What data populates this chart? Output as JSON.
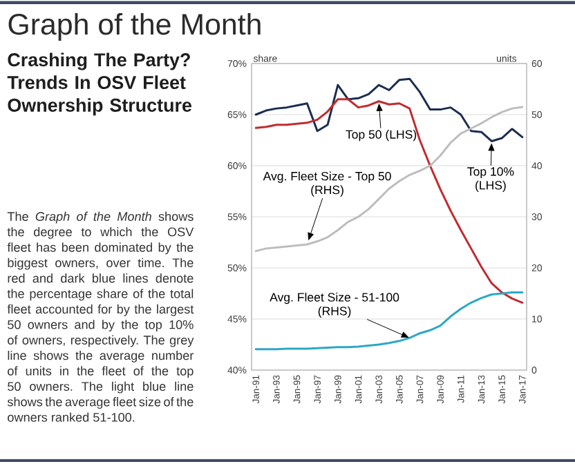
{
  "chart_data": {
    "type": "line",
    "title": "Graph of the Month",
    "subtitle": "Crashing The Party? Trends In OSV Fleet Ownership Structure",
    "ylabel": "share",
    "y2label": "units",
    "annotations": [
      "The *Graph of the Month* shows the degree to which the OSV fleet has been dominated by the biggest owners, over time. The red and dark blue lines denote the percentage share of the total fleet accounted for by the largest 50 owners and by the top 10% of owners, respectively. The grey line shows the average number of units in the fleet of the top 50 owners. The light blue line shows the average fleet size of the owners ranked 51-100."
    ],
    "x": [
      "1991-01",
      "1992-01",
      "1993-01",
      "1994-01",
      "1995-01",
      "1996-01",
      "1997-01",
      "1998-01",
      "1999-01",
      "2000-01",
      "2001-01",
      "2002-01",
      "2003-01",
      "2004-01",
      "2005-01",
      "2006-01",
      "2007-01",
      "2008-01",
      "2009-01",
      "2010-01",
      "2011-01",
      "2012-01",
      "2013-01",
      "2014-01",
      "2015-01",
      "2016-01",
      "2017-01"
    ],
    "xlim": [
      "1990-08",
      "2017-06"
    ],
    "xticks": [
      {
        "value": "1991-01",
        "label": "Jan-91"
      },
      {
        "value": "1993-01",
        "label": "Jan-93"
      },
      {
        "value": "1995-01",
        "label": "Jan-95"
      },
      {
        "value": "1997-01",
        "label": "Jan-97"
      },
      {
        "value": "1999-01",
        "label": "Jan-99"
      },
      {
        "value": "2001-01",
        "label": "Jan-01"
      },
      {
        "value": "2003-01",
        "label": "Jan-03"
      },
      {
        "value": "2005-01",
        "label": "Jan-05"
      },
      {
        "value": "2007-01",
        "label": "Jan-07"
      },
      {
        "value": "2009-01",
        "label": "Jan-09"
      },
      {
        "value": "2011-01",
        "label": "Jan-11"
      },
      {
        "value": "2013-01",
        "label": "Jan-13"
      },
      {
        "value": "2015-01",
        "label": "Jan-15"
      },
      {
        "value": "2017-01",
        "label": "Jan-17"
      }
    ],
    "ylim": [
      40,
      70
    ],
    "yticks": [
      {
        "value": 40,
        "label": "40%"
      },
      {
        "value": 45,
        "label": "45%"
      },
      {
        "value": 50,
        "label": "50%"
      },
      {
        "value": 55,
        "label": "55%"
      },
      {
        "value": 60,
        "label": "60%"
      },
      {
        "value": 65,
        "label": "65%"
      },
      {
        "value": 70,
        "label": "70%"
      }
    ],
    "y2lim": [
      0,
      60
    ],
    "y2ticks": [
      0,
      10,
      20,
      30,
      40,
      50,
      60
    ],
    "grid": "y",
    "series": [
      {
        "name": "Top 10% (LHS)",
        "color": "#1b2d50",
        "values": [
          65.0,
          65.4,
          65.6,
          65.7,
          65.9,
          66.1,
          63.4,
          64.0,
          67.9,
          66.5,
          66.6,
          67.0,
          67.9,
          67.4,
          68.4,
          68.5,
          67.2,
          65.5,
          65.5,
          65.7,
          65.0,
          63.4,
          63.3,
          62.4,
          62.7,
          63.6,
          62.8
        ]
      },
      {
        "name": "Top 50 (LHS)",
        "color": "#c22a2f",
        "values": [
          63.7,
          63.8,
          64.0,
          64.0,
          64.1,
          64.2,
          64.5,
          65.3,
          66.5,
          66.5,
          65.7,
          65.9,
          66.3,
          66.0,
          66.1,
          65.6,
          62.5,
          60.0,
          57.7,
          55.6,
          53.7,
          51.9,
          50.1,
          48.5,
          47.6,
          47.0,
          46.6
        ]
      },
      {
        "name": "Avg. Fleet Size - Top 50 (RHS)",
        "color": "#bdbdbd",
        "axis": "y2",
        "values": [
          23.3,
          23.8,
          24.0,
          24.2,
          24.4,
          24.6,
          25.2,
          26.0,
          27.4,
          29.0,
          30.0,
          31.5,
          33.5,
          35.5,
          37.0,
          38.2,
          39.0,
          40.0,
          42.0,
          44.5,
          46.3,
          47.3,
          48.3,
          49.5,
          50.5,
          51.2,
          51.5
        ]
      },
      {
        "name": "Avg. Fleet Size - 51-100 (RHS)",
        "color": "#2ba8c6",
        "axis": "y2",
        "values": [
          4.1,
          4.1,
          4.1,
          4.2,
          4.2,
          4.2,
          4.3,
          4.4,
          4.5,
          4.5,
          4.6,
          4.8,
          5.0,
          5.3,
          5.7,
          6.3,
          7.2,
          7.8,
          8.7,
          10.5,
          12.0,
          13.2,
          14.1,
          14.8,
          15.0,
          15.2,
          15.2
        ]
      }
    ]
  }
}
